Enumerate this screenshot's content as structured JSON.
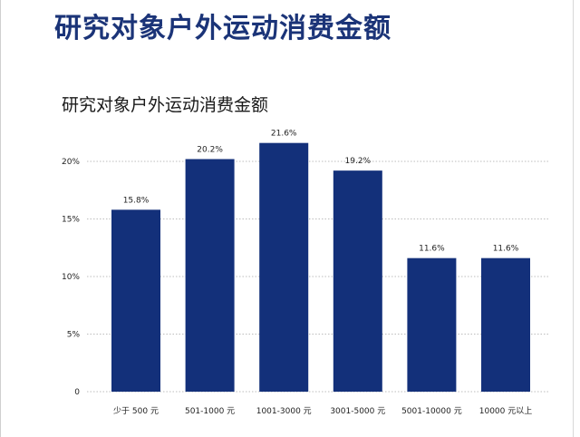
{
  "page": {
    "title": "研究对象户外运动消费金额"
  },
  "colors": {
    "bar": "#13307a",
    "grid": "#bdbdbd",
    "title": "#1b3478"
  },
  "chart_data": {
    "type": "bar",
    "title": "研究对象户外运动消费金额",
    "categories": [
      "少于 500 元",
      "501-1000 元",
      "1001-3000 元",
      "3001-5000 元",
      "5001-10000 元",
      "10000 元以上"
    ],
    "values": [
      15.8,
      20.2,
      21.6,
      19.2,
      11.6,
      11.6
    ],
    "value_labels": [
      "15.8%",
      "20.2%",
      "21.6%",
      "19.2%",
      "11.6%",
      "11.6%"
    ],
    "yticks": [
      0,
      5,
      10,
      15,
      20
    ],
    "ytick_labels": [
      "0",
      "5%",
      "10%",
      "15%",
      "20%"
    ],
    "ylim": [
      0,
      22
    ],
    "xlabel": "",
    "ylabel": "",
    "grid": true
  }
}
